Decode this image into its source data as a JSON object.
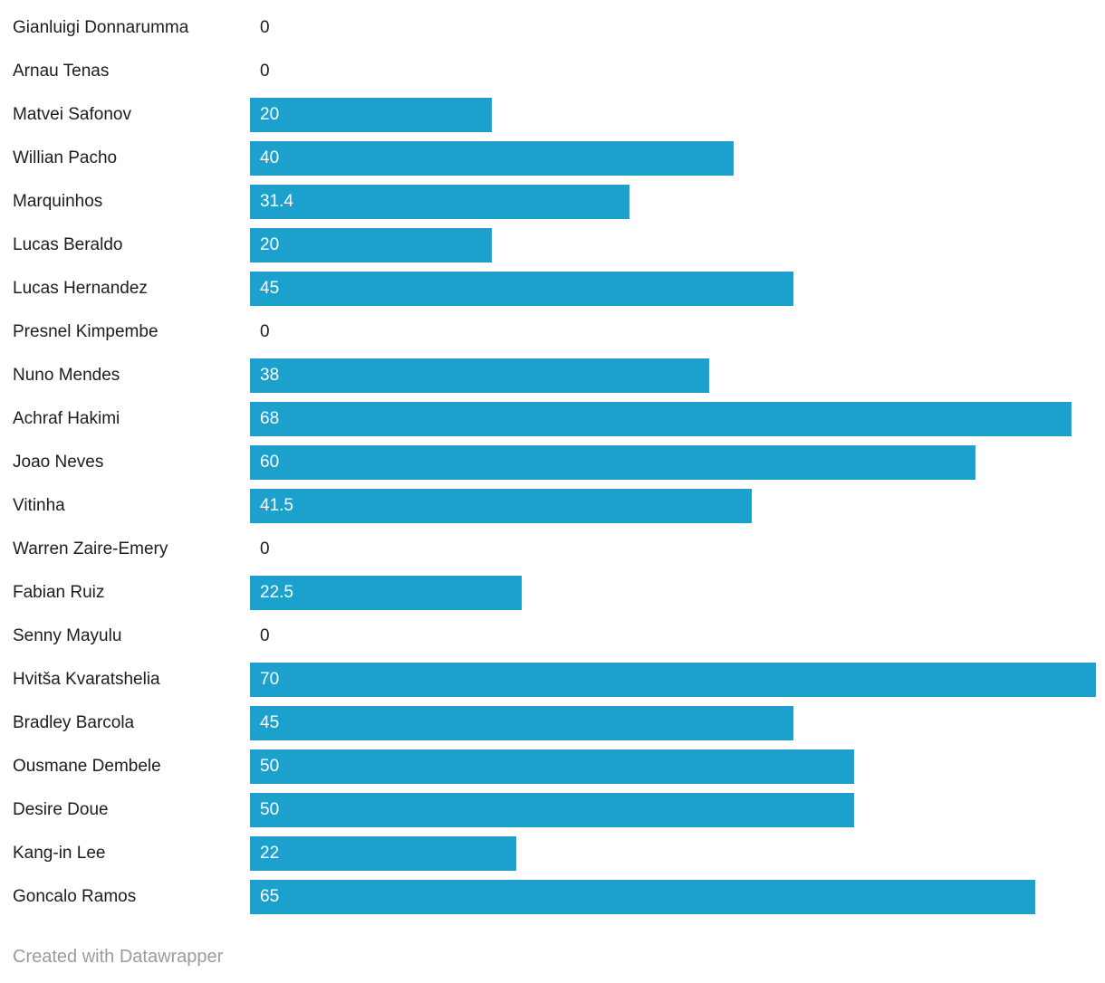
{
  "chart_data": {
    "type": "bar",
    "orientation": "horizontal",
    "title": "",
    "xlabel": "",
    "ylabel": "",
    "xlim": [
      0,
      70
    ],
    "grid": false,
    "legend": false,
    "bar_color": "#1CA1CF",
    "value_labels": "inside-start",
    "categories": [
      "Gianluigi Donnarumma",
      "Arnau Tenas",
      "Matvei Safonov",
      "Willian Pacho",
      "Marquinhos",
      "Lucas Beraldo",
      "Lucas Hernandez",
      "Presnel Kimpembe",
      "Nuno Mendes",
      "Achraf Hakimi",
      "Joao Neves",
      "Vitinha",
      "Warren Zaire-Emery",
      "Fabian Ruiz",
      "Senny Mayulu",
      "Hvitša Kvaratshelia",
      "Bradley Barcola",
      "Ousmane Dembele",
      "Desire Doue",
      "Kang-in Lee",
      "Goncalo Ramos"
    ],
    "values": [
      0,
      0,
      20,
      40,
      31.4,
      20,
      45,
      0,
      38,
      68,
      60,
      41.5,
      0,
      22.5,
      0,
      70,
      45,
      50,
      50,
      22,
      65
    ],
    "value_display": [
      "0",
      "0",
      "20",
      "40",
      "31.4",
      "20",
      "45",
      "0",
      "38",
      "68",
      "60",
      "41.5",
      "0",
      "22.5",
      "0",
      "70",
      "45",
      "50",
      "50",
      "22",
      "65"
    ]
  },
  "colors": {
    "bar": "#1CA1CF",
    "label_text": "#1d1d1d",
    "bar_value_text": "#ffffff",
    "footer_text": "#9b9b9b",
    "background": "#ffffff"
  },
  "footer": {
    "attribution": "Created with Datawrapper"
  }
}
